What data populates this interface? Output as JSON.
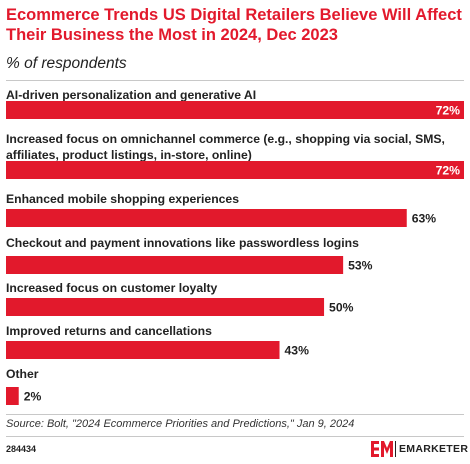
{
  "header": {
    "title": "Ecommerce Trends US Digital Retailers Believe Will Affect Their Business the Most in 2024, Dec 2023",
    "subtitle": "% of respondents"
  },
  "chart_data": {
    "type": "bar",
    "orientation": "horizontal",
    "title": "Ecommerce Trends US Digital Retailers Believe Will Affect Their Business the Most in 2024, Dec 2023",
    "subtitle": "% of respondents",
    "categories": [
      "AI-driven personalization and generative AI",
      "Increased focus on omnichannel commerce (e.g., shopping via social, SMS, affiliates, product listings, in-store, online)",
      "Enhanced mobile shopping experiences",
      "Checkout and payment innovations like passwordless logins",
      "Increased focus on customer loyalty",
      "Improved returns and cancellations",
      "Other"
    ],
    "category_lines": [
      [
        "AI-driven personalization and generative AI"
      ],
      [
        "Increased focus on omnichannel commerce (e.g., shopping via social, SMS,",
        "affiliates, product listings, in-store, online)"
      ],
      [
        "Enhanced mobile shopping experiences"
      ],
      [
        "Checkout and payment innovations like passwordless logins"
      ],
      [
        "Increased focus on customer loyalty"
      ],
      [
        "Improved returns and cancellations"
      ],
      [
        "Other"
      ]
    ],
    "values": [
      72,
      72,
      63,
      53,
      50,
      43,
      2
    ],
    "value_labels": [
      "72%",
      "72%",
      "63%",
      "53%",
      "50%",
      "43%",
      "2%"
    ],
    "xlim": [
      0,
      72
    ],
    "bar_color": "#e2192c",
    "grid": false,
    "legend": "none"
  },
  "footer": {
    "source": "Source: Bolt, \"2024 Ecommerce Priorities and Predictions,\" Jan 9, 2024",
    "chart_id": "284434",
    "brand": "EMARKETER"
  },
  "colors": {
    "accent": "#e2192c",
    "text": "#222222",
    "rule": "#c8c8c8"
  }
}
